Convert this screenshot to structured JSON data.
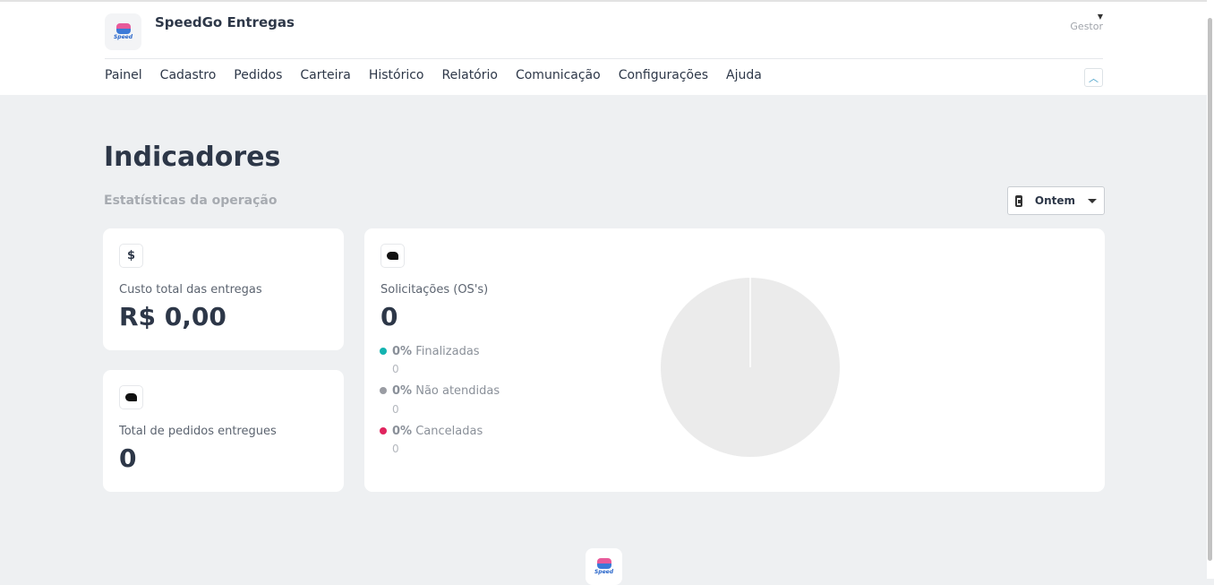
{
  "header": {
    "brand": "SpeedGo Entregas",
    "logo_text": "Speed",
    "user_role": "Gestor"
  },
  "nav": [
    "Painel",
    "Cadastro",
    "Pedidos",
    "Carteira",
    "Histórico",
    "Relatório",
    "Comunicação",
    "Configurações",
    "Ajuda"
  ],
  "page": {
    "title": "Indicadores",
    "subtitle": "Estatísticas da operação",
    "date_filter": "Ontem"
  },
  "cards": {
    "cost": {
      "icon": "dollar-icon",
      "symbol": "$",
      "label": "Custo total das entregas",
      "value": "R$ 0,00"
    },
    "delivered": {
      "icon": "helmet-icon",
      "label": "Total de pedidos entregues",
      "value": "0"
    },
    "requests": {
      "icon": "helmet-icon",
      "label": "Solicitações (OS's)",
      "value": "0",
      "legend": [
        {
          "pct": "0%",
          "label": "Finalizadas",
          "count": "0",
          "color": "#13b3b0"
        },
        {
          "pct": "0%",
          "label": "Não atendidas",
          "count": "0",
          "color": "#9a9ca3"
        },
        {
          "pct": "0%",
          "label": "Canceladas",
          "count": "0",
          "color": "#e0245e"
        }
      ],
      "pie_empty_color": "#ebebeb"
    }
  }
}
